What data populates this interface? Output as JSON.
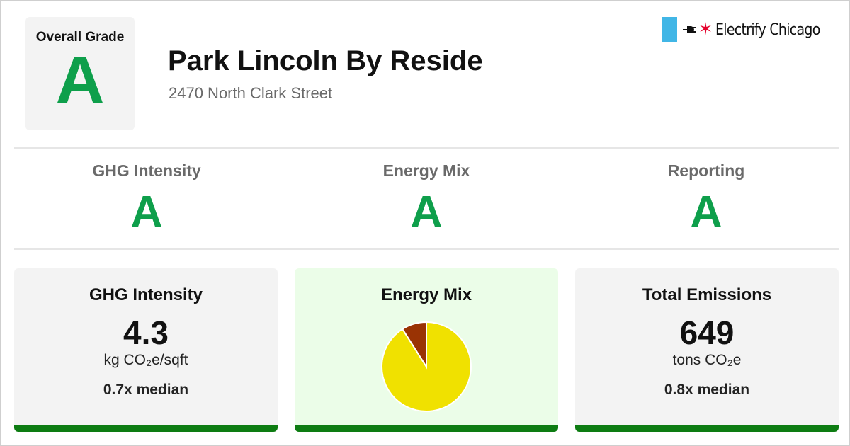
{
  "overall": {
    "label": "Overall Grade",
    "grade": "A"
  },
  "building": {
    "name": "Park Lincoln By Reside",
    "address": "2470 North Clark Street"
  },
  "logo": {
    "text": "Electrify Chicago",
    "icons": [
      "chicago-flag-icon",
      "plug-icon",
      "chicago-star-icon"
    ]
  },
  "grades": [
    {
      "label": "GHG Intensity",
      "grade": "A"
    },
    {
      "label": "Energy Mix",
      "grade": "A"
    },
    {
      "label": "Reporting",
      "grade": "A"
    }
  ],
  "cards": {
    "ghg": {
      "title": "GHG Intensity",
      "value": "4.3",
      "unit": "kg CO₂e/sqft",
      "median": "0.7x median"
    },
    "mix": {
      "title": "Energy Mix"
    },
    "emissions": {
      "title": "Total Emissions",
      "value": "649",
      "unit": "tons CO₂e",
      "median": "0.8x median"
    }
  },
  "chart_data": {
    "type": "pie",
    "slices": [
      {
        "share": 0.91,
        "color": "#f0e100"
      },
      {
        "share": 0.09,
        "color": "#9a3304"
      }
    ]
  },
  "colors": {
    "grade_green": "#0e9f4b",
    "card_bar": "#0d7c12",
    "card_bg": "#f3f3f3",
    "mix_card_bg": "#ebfde8",
    "flag_blue": "#41b6e6",
    "star_red": "#e4002b"
  }
}
